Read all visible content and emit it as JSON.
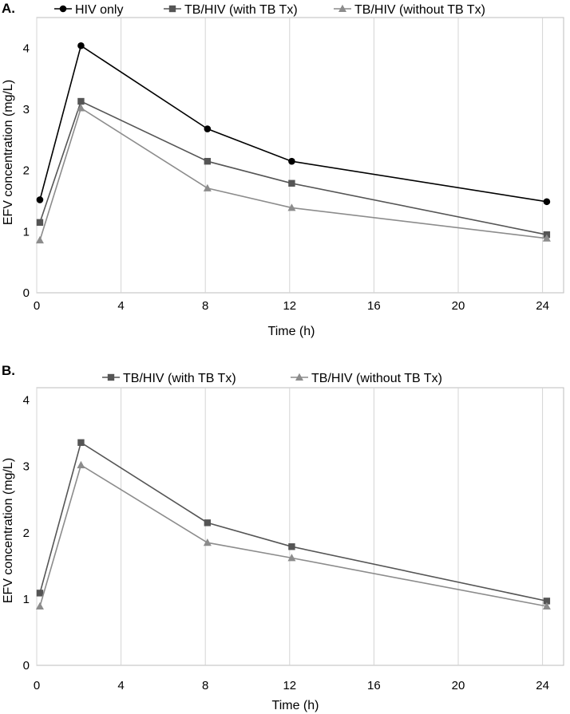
{
  "chart_data": [
    {
      "type": "line",
      "panel_label": "A.",
      "title": "",
      "xlabel": "Time (h)",
      "ylabel": "EFV concentration (mg/L)",
      "xlim": [
        0,
        25
      ],
      "ylim": [
        0,
        4.5
      ],
      "xticks": [
        0,
        4,
        8,
        12,
        16,
        20,
        24
      ],
      "yticks": [
        0,
        1,
        2,
        3,
        4
      ],
      "grid": "vertical",
      "legend_position": "top",
      "series": [
        {
          "name": "HIV only",
          "marker": "circle",
          "color": "#000000",
          "x": [
            0.15,
            2.1,
            8.1,
            12.1,
            24.2
          ],
          "y": [
            1.52,
            4.04,
            2.68,
            2.15,
            1.49
          ]
        },
        {
          "name": "TB/HIV (with TB Tx)",
          "marker": "square",
          "color": "#555555",
          "x": [
            0.15,
            2.1,
            8.1,
            12.1,
            24.2
          ],
          "y": [
            1.15,
            3.13,
            2.15,
            1.79,
            0.95
          ]
        },
        {
          "name": "TB/HIV (without TB Tx)",
          "marker": "triangle",
          "color": "#8c8c8c",
          "x": [
            0.15,
            2.1,
            8.1,
            12.1,
            24.2
          ],
          "y": [
            0.86,
            3.02,
            1.71,
            1.39,
            0.89
          ]
        }
      ]
    },
    {
      "type": "line",
      "panel_label": "B.",
      "title": "",
      "xlabel": "Time (h)",
      "ylabel": "EFV concentration (mg/L)",
      "xlim": [
        0,
        25
      ],
      "ylim": [
        0,
        4.5
      ],
      "xticks": [
        0,
        4,
        8,
        12,
        16,
        20,
        24
      ],
      "yticks": [
        0,
        1,
        2,
        3,
        4
      ],
      "grid": "vertical",
      "legend_position": "top",
      "series": [
        {
          "name": "TB/HIV (with TB Tx)",
          "marker": "square",
          "color": "#555555",
          "x": [
            0.15,
            2.1,
            8.1,
            12.1,
            24.2
          ],
          "y": [
            1.09,
            3.36,
            2.15,
            1.79,
            0.97
          ]
        },
        {
          "name": "TB/HIV (without TB Tx)",
          "marker": "triangle",
          "color": "#8c8c8c",
          "x": [
            0.15,
            2.1,
            8.1,
            12.1,
            24.2
          ],
          "y": [
            0.89,
            3.02,
            1.85,
            1.62,
            0.89
          ]
        }
      ]
    }
  ]
}
